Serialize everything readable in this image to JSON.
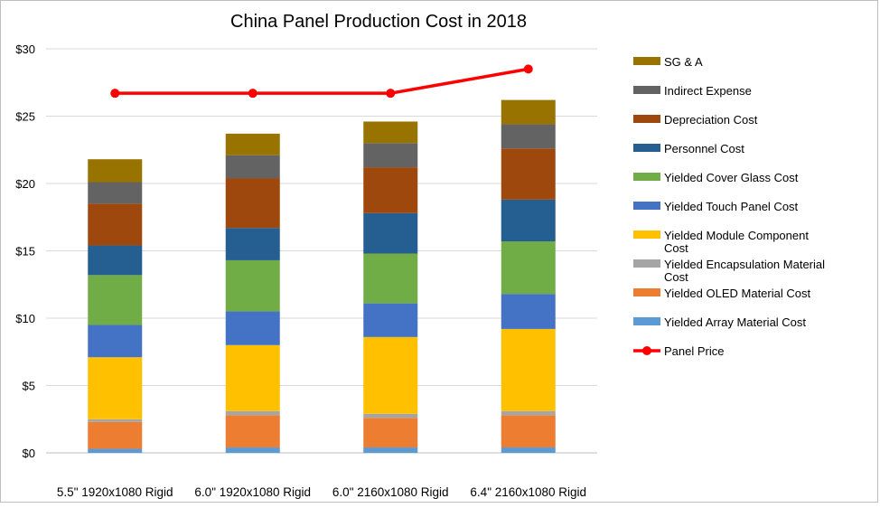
{
  "chart_data": {
    "type": "bar",
    "stacked": true,
    "title": "China  Panel Production Cost in 2018",
    "categories": [
      "5.5\" 1920x1080 Rigid",
      "6.0\" 1920x1080 Rigid",
      "6.0\" 2160x1080 Rigid",
      "6.4\" 2160x1080 Rigid"
    ],
    "ylim": [
      0,
      30
    ],
    "yticks": [
      0,
      5,
      10,
      15,
      20,
      25,
      30
    ],
    "ytick_labels": [
      "$0",
      "$5",
      "$10",
      "$15",
      "$20",
      "$25",
      "$30"
    ],
    "grid": true,
    "legend_position": "right",
    "series": [
      {
        "name": "Yielded Array Material Cost",
        "color": "#5b9bd5",
        "values": [
          0.3,
          0.4,
          0.4,
          0.4
        ]
      },
      {
        "name": "Yielded OLED Material Cost",
        "color": "#ed7d31",
        "values": [
          2.0,
          2.4,
          2.2,
          2.4
        ]
      },
      {
        "name": "Yielded Encapsulation Material Cost",
        "color": "#a5a5a5",
        "values": [
          0.2,
          0.3,
          0.3,
          0.3
        ]
      },
      {
        "name": "Yielded Module Component Cost",
        "color": "#ffc000",
        "values": [
          4.6,
          4.9,
          5.7,
          6.1
        ]
      },
      {
        "name": "Yielded Touch Panel Cost",
        "color": "#4472c4",
        "values": [
          2.4,
          2.5,
          2.5,
          2.6
        ]
      },
      {
        "name": "Yielded Cover Glass Cost",
        "color": "#70ad47",
        "values": [
          3.7,
          3.8,
          3.7,
          3.9
        ]
      },
      {
        "name": "Personnel Cost",
        "color": "#255e91",
        "values": [
          2.2,
          2.4,
          3.0,
          3.1
        ]
      },
      {
        "name": "Depreciation Cost",
        "color": "#9e480e",
        "values": [
          3.1,
          3.7,
          3.4,
          3.8
        ]
      },
      {
        "name": "Indirect Expense",
        "color": "#636363",
        "values": [
          1.6,
          1.7,
          1.8,
          1.8
        ]
      },
      {
        "name": "SG & A",
        "color": "#997300",
        "values": [
          1.7,
          1.6,
          1.6,
          1.8
        ]
      }
    ],
    "line_series": {
      "name": "Panel Price",
      "color": "#ff0000",
      "values": [
        26.7,
        26.7,
        26.7,
        28.5
      ]
    },
    "legend_labels": [
      {
        "lines": [
          "SG & A"
        ]
      },
      {
        "lines": [
          "Indirect Expense"
        ]
      },
      {
        "lines": [
          "Depreciation Cost"
        ]
      },
      {
        "lines": [
          "Personnel Cost"
        ]
      },
      {
        "lines": [
          "Yielded Cover Glass Cost"
        ]
      },
      {
        "lines": [
          "Yielded Touch Panel Cost"
        ]
      },
      {
        "lines": [
          "Yielded Module Component",
          "Cost"
        ]
      },
      {
        "lines": [
          "Yielded Encapsulation Material",
          "Cost"
        ]
      },
      {
        "lines": [
          "Yielded OLED Material Cost"
        ]
      },
      {
        "lines": [
          "Yielded Array Material Cost"
        ]
      },
      {
        "lines": [
          "Panel Price"
        ]
      }
    ]
  }
}
